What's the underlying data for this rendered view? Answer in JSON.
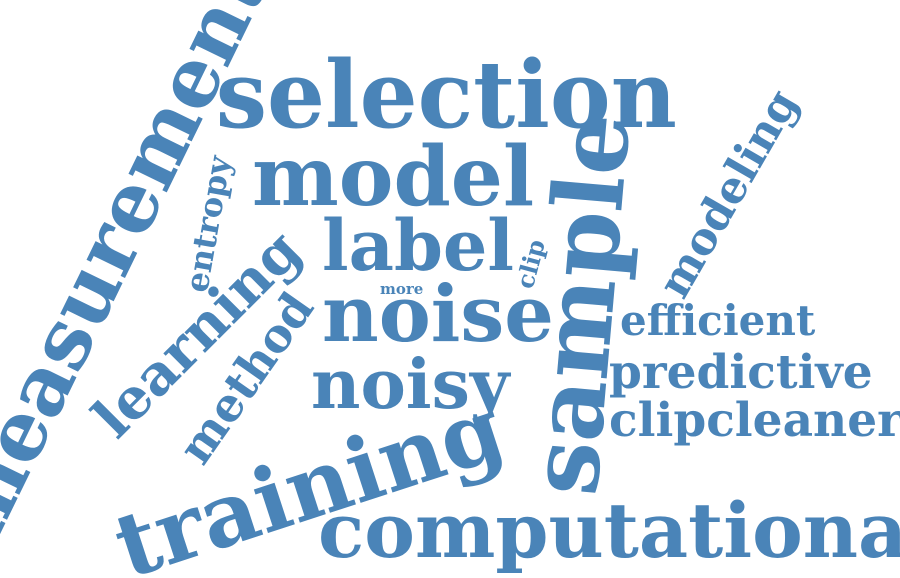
{
  "theme": {
    "word_color": "#4a84b8",
    "background": "#ffffff"
  },
  "words": {
    "selection": "selection",
    "model": "model",
    "label": "label",
    "noise": "noise",
    "noisy": "noisy",
    "training": "training",
    "computational": "computational",
    "sample": "sample",
    "measurement": "measurement",
    "learning": "learning",
    "method": "method",
    "entropy": "entropy",
    "more": "more",
    "clip": "clip",
    "modeling": "modeling",
    "efficient": "efficient",
    "predictive": "predictive",
    "clipcleaner": "clipcleaner"
  }
}
